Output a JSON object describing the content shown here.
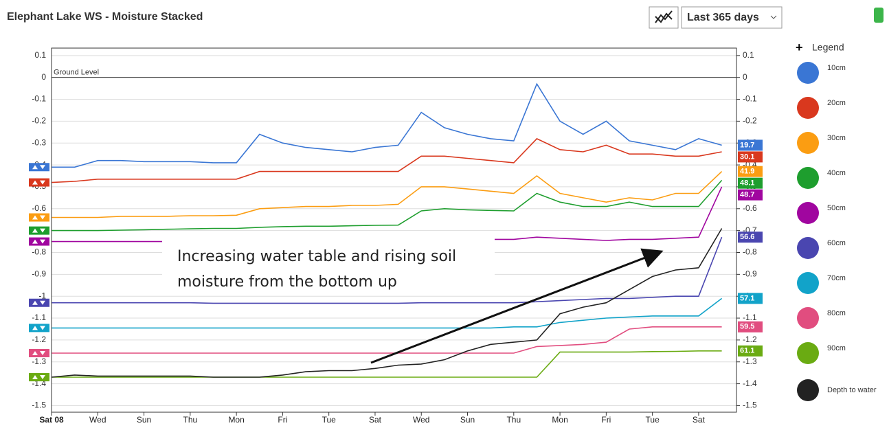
{
  "controls": {
    "range": "Last 365 days"
  },
  "chart_data": {
    "type": "line",
    "title": "Elephant Lake WS - Moisture Stacked",
    "legend_title": "Legend",
    "annotations": [
      "Ground Level",
      "Increasing water table and rising soil moisture from the bottom up"
    ],
    "categories": [
      "Sat 08",
      null,
      "Wed",
      null,
      "Sun",
      null,
      "Thu",
      null,
      "Mon",
      null,
      "Fri",
      null,
      "Tue",
      null,
      "Sat",
      null,
      "Wed",
      null,
      "Sun",
      null,
      "Thu",
      null,
      "Mon",
      null,
      "Fri",
      null,
      "Tue",
      null,
      "Sat",
      null
    ],
    "ylim": [
      -1.53,
      0.134
    ],
    "yticks": [
      0.1,
      0,
      -0.1,
      -0.2,
      -0.3,
      -0.4,
      -0.5,
      -0.6,
      -0.7,
      -0.8,
      -0.9,
      -1,
      -1.1,
      -1.2,
      -1.3,
      -1.4,
      -1.5
    ],
    "grid": true,
    "series": [
      {
        "name": "10cm",
        "color": "#3a76d4",
        "current": 19.7,
        "values": [
          -0.41,
          -0.41,
          -0.38,
          -0.38,
          -0.385,
          -0.385,
          -0.385,
          -0.39,
          -0.39,
          -0.26,
          -0.3,
          -0.32,
          -0.33,
          -0.34,
          -0.32,
          -0.31,
          -0.16,
          -0.23,
          -0.26,
          -0.28,
          -0.29,
          -0.03,
          -0.2,
          -0.26,
          -0.2,
          -0.29,
          -0.31,
          -0.33,
          -0.28,
          -0.31
        ]
      },
      {
        "name": "20cm",
        "color": "#d9381e",
        "current": 30.1,
        "values": [
          -0.48,
          -0.475,
          -0.465,
          -0.465,
          -0.465,
          -0.465,
          -0.465,
          -0.465,
          -0.465,
          -0.43,
          -0.43,
          -0.43,
          -0.43,
          -0.43,
          -0.43,
          -0.43,
          -0.36,
          -0.36,
          -0.37,
          -0.38,
          -0.39,
          -0.28,
          -0.33,
          -0.34,
          -0.31,
          -0.35,
          -0.35,
          -0.36,
          -0.36,
          -0.34
        ]
      },
      {
        "name": "30cm",
        "color": "#fb9d12",
        "current": 41.9,
        "values": [
          -0.64,
          -0.64,
          -0.64,
          -0.635,
          -0.635,
          -0.635,
          -0.632,
          -0.632,
          -0.63,
          -0.6,
          -0.595,
          -0.59,
          -0.59,
          -0.585,
          -0.585,
          -0.58,
          -0.5,
          -0.5,
          -0.51,
          -0.52,
          -0.53,
          -0.45,
          -0.53,
          -0.55,
          -0.57,
          -0.55,
          -0.56,
          -0.53,
          -0.53,
          -0.43
        ]
      },
      {
        "name": "40cm",
        "color": "#1e9e2e",
        "current": 48.1,
        "values": [
          -0.7,
          -0.7,
          -0.7,
          -0.698,
          -0.696,
          -0.694,
          -0.692,
          -0.69,
          -0.69,
          -0.685,
          -0.682,
          -0.68,
          -0.68,
          -0.678,
          -0.676,
          -0.675,
          -0.61,
          -0.6,
          -0.605,
          -0.608,
          -0.61,
          -0.53,
          -0.57,
          -0.59,
          -0.59,
          -0.57,
          -0.59,
          -0.59,
          -0.59,
          -0.47
        ]
      },
      {
        "name": "50cm",
        "color": "#a0069f",
        "current": 48.7,
        "values": [
          -0.75,
          -0.75,
          -0.75,
          -0.75,
          -0.75,
          -0.75,
          -0.75,
          -0.75,
          -0.75,
          -0.75,
          -0.75,
          -0.75,
          -0.75,
          -0.75,
          -0.75,
          -0.75,
          -0.75,
          -0.75,
          -0.745,
          -0.74,
          -0.74,
          -0.73,
          -0.735,
          -0.74,
          -0.745,
          -0.74,
          -0.74,
          -0.735,
          -0.73,
          -0.5
        ]
      },
      {
        "name": "60cm",
        "color": "#4a46b0",
        "current": 56.6,
        "values": [
          -1.03,
          -1.03,
          -1.03,
          -1.03,
          -1.03,
          -1.03,
          -1.03,
          -1.032,
          -1.032,
          -1.032,
          -1.032,
          -1.032,
          -1.032,
          -1.032,
          -1.032,
          -1.032,
          -1.03,
          -1.03,
          -1.03,
          -1.03,
          -1.03,
          -1.025,
          -1.02,
          -1.015,
          -1.01,
          -1.01,
          -1.005,
          -1.0,
          -1.0,
          -0.73
        ]
      },
      {
        "name": "70cm",
        "color": "#12a3c9",
        "current": 57.1,
        "values": [
          -1.145,
          -1.145,
          -1.145,
          -1.145,
          -1.145,
          -1.145,
          -1.145,
          -1.145,
          -1.145,
          -1.145,
          -1.145,
          -1.145,
          -1.145,
          -1.145,
          -1.145,
          -1.145,
          -1.145,
          -1.145,
          -1.145,
          -1.145,
          -1.14,
          -1.14,
          -1.12,
          -1.11,
          -1.1,
          -1.095,
          -1.09,
          -1.09,
          -1.09,
          -1.01
        ]
      },
      {
        "name": "80cm",
        "color": "#e14d7f",
        "current": 59.5,
        "values": [
          -1.26,
          -1.26,
          -1.26,
          -1.26,
          -1.26,
          -1.26,
          -1.26,
          -1.26,
          -1.26,
          -1.26,
          -1.26,
          -1.26,
          -1.26,
          -1.26,
          -1.26,
          -1.26,
          -1.26,
          -1.26,
          -1.26,
          -1.26,
          -1.26,
          -1.23,
          -1.225,
          -1.22,
          -1.21,
          -1.15,
          -1.14,
          -1.14,
          -1.14,
          -1.14
        ]
      },
      {
        "name": "90cm",
        "color": "#6aab12",
        "current": 61.1,
        "values": [
          -1.37,
          -1.37,
          -1.37,
          -1.37,
          -1.37,
          -1.37,
          -1.37,
          -1.37,
          -1.37,
          -1.37,
          -1.37,
          -1.37,
          -1.37,
          -1.37,
          -1.37,
          -1.37,
          -1.37,
          -1.37,
          -1.37,
          -1.37,
          -1.37,
          -1.37,
          -1.255,
          -1.255,
          -1.255,
          -1.255,
          -1.253,
          -1.252,
          -1.25,
          -1.25
        ]
      },
      {
        "name": "Depth to water",
        "color": "#222222",
        "values": [
          -1.37,
          -1.36,
          -1.365,
          -1.365,
          -1.365,
          -1.365,
          -1.365,
          -1.37,
          -1.37,
          -1.37,
          -1.36,
          -1.345,
          -1.34,
          -1.34,
          -1.33,
          -1.315,
          -1.31,
          -1.29,
          -1.25,
          -1.22,
          -1.21,
          -1.2,
          -1.08,
          -1.05,
          -1.03,
          -0.97,
          -0.91,
          -0.88,
          -0.87,
          -0.69
        ]
      }
    ]
  }
}
